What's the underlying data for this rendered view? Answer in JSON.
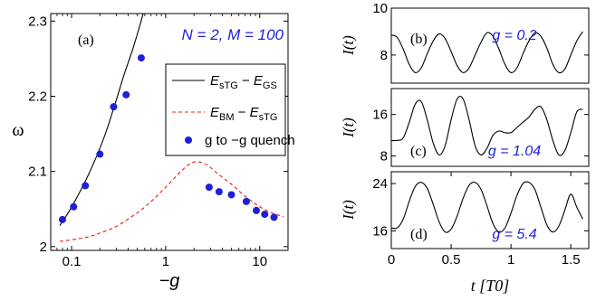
{
  "chart_data": [
    {
      "id": "a",
      "type": "scatter",
      "panel_label": "(a)",
      "annotation": "N = 2, M = 100",
      "xlabel": "−g",
      "ylabel": "ω",
      "xscale": "log",
      "xlim": [
        0.06,
        20
      ],
      "ylim": [
        1.995,
        2.31
      ],
      "xticks": [
        0.1,
        1,
        10
      ],
      "xtick_labels": [
        "0.1",
        "1",
        "10"
      ],
      "yticks": [
        2.0,
        2.1,
        2.2,
        2.3
      ],
      "ytick_labels": [
        "2",
        "2.1",
        "2.2",
        "2.3"
      ],
      "legend_position": "center-right",
      "legend": {
        "sTG_GS": {
          "E1": "E",
          "s1": "sTG",
          "E2": "E",
          "s2": "GS"
        },
        "BM_sTG": {
          "E1": "E",
          "s1": "BM",
          "E2": "E",
          "s2": "sTG"
        },
        "quench": "g to −g quench"
      },
      "series": [
        {
          "name": "E_sTG − E_GS",
          "style": "solid",
          "color": "#000000",
          "x": [
            0.075,
            0.09,
            0.11,
            0.14,
            0.18,
            0.23,
            0.29,
            0.36,
            0.44,
            0.52,
            0.6
          ],
          "y": [
            2.028,
            2.043,
            2.062,
            2.087,
            2.117,
            2.151,
            2.19,
            2.228,
            2.26,
            2.29,
            2.318
          ]
        },
        {
          "name": "E_BM − E_sTG",
          "style": "dashed",
          "color": "#e8201c",
          "x": [
            0.075,
            0.1,
            0.15,
            0.2,
            0.3,
            0.5,
            0.7,
            1.0,
            1.4,
            1.8,
            2.2,
            2.8,
            3.5,
            5,
            7,
            10,
            14,
            18
          ],
          "y": [
            2.007,
            2.009,
            2.013,
            2.018,
            2.027,
            2.045,
            2.06,
            2.079,
            2.098,
            2.11,
            2.113,
            2.108,
            2.098,
            2.083,
            2.067,
            2.053,
            2.044,
            2.04
          ]
        },
        {
          "name": "g to −g quench",
          "style": "markers",
          "color": "#1f1fd6",
          "x": [
            0.08,
            0.105,
            0.14,
            0.2,
            0.28,
            0.38,
            0.55,
            2.9,
            3.7,
            5.0,
            7.2,
            9.2,
            11.3,
            14.2
          ],
          "y": [
            2.036,
            2.053,
            2.081,
            2.123,
            2.186,
            2.202,
            2.251,
            2.079,
            2.073,
            2.069,
            2.06,
            2.048,
            2.043,
            2.039
          ]
        }
      ]
    },
    {
      "id": "b",
      "type": "line",
      "panel_label": "(b)",
      "annotation": "g = 0.2",
      "ylabel": "I(t)",
      "xlim": [
        0,
        1.65
      ],
      "ylim": [
        6.8,
        10
      ],
      "yticks": [
        8,
        10
      ],
      "ytick_labels": [
        "8",
        "10"
      ],
      "series": [
        {
          "name": "",
          "color": "#000000",
          "x": [
            0,
            0.05,
            0.1,
            0.15,
            0.2,
            0.25,
            0.3,
            0.35,
            0.4,
            0.45,
            0.5,
            0.55,
            0.6,
            0.65,
            0.7,
            0.75,
            0.8,
            0.85,
            0.9,
            0.95,
            1.0,
            1.05,
            1.1,
            1.15,
            1.2,
            1.25,
            1.3,
            1.35,
            1.4,
            1.45,
            1.5,
            1.55,
            1.6
          ],
          "y": [
            8.85,
            8.75,
            8.25,
            7.6,
            7.25,
            7.45,
            8.05,
            8.6,
            8.9,
            8.7,
            8.15,
            7.55,
            7.25,
            7.45,
            8.0,
            8.55,
            8.95,
            8.8,
            8.25,
            7.6,
            7.25,
            7.45,
            8.05,
            8.6,
            8.95,
            8.8,
            8.3,
            7.6,
            7.25,
            7.4,
            8.0,
            8.6,
            9.0
          ]
        }
      ]
    },
    {
      "id": "c",
      "type": "line",
      "panel_label": "(c)",
      "annotation": "g = 1.04",
      "ylabel": "I(t)",
      "xlim": [
        0,
        1.65
      ],
      "ylim": [
        6,
        21
      ],
      "yticks": [
        8,
        16
      ],
      "ytick_labels": [
        "8",
        "16"
      ],
      "series": [
        {
          "name": "",
          "color": "#000000",
          "x": [
            0,
            0.05,
            0.1,
            0.15,
            0.2,
            0.25,
            0.3,
            0.35,
            0.4,
            0.45,
            0.5,
            0.55,
            0.6,
            0.65,
            0.7,
            0.75,
            0.8,
            0.85,
            0.9,
            0.95,
            1.0,
            1.05,
            1.1,
            1.15,
            1.2,
            1.25,
            1.3,
            1.35,
            1.4,
            1.45,
            1.5,
            1.55,
            1.6
          ],
          "y": [
            11,
            11,
            11.5,
            14.5,
            18,
            18.5,
            15,
            10.5,
            8.2,
            10,
            15,
            19,
            19,
            15,
            10,
            8.2,
            9.5,
            12,
            12.8,
            12.5,
            12.5,
            13.5,
            14.5,
            15.5,
            17,
            17.5,
            15,
            11,
            8.2,
            9,
            12.5,
            16.5,
            17
          ]
        }
      ]
    },
    {
      "id": "d",
      "type": "line",
      "panel_label": "(d)",
      "annotation": "g = 5.4",
      "ylabel": "I(t)",
      "xlabel": "t [T0]",
      "xlim": [
        0,
        1.65
      ],
      "ylim": [
        13,
        26
      ],
      "xticks": [
        0,
        0.5,
        1,
        1.5
      ],
      "xtick_labels": [
        "0",
        "0.5",
        "1",
        "1.5"
      ],
      "yticks": [
        16,
        24
      ],
      "ytick_labels": [
        "16",
        "24"
      ],
      "series": [
        {
          "name": "",
          "color": "#000000",
          "x": [
            0,
            0.05,
            0.1,
            0.15,
            0.2,
            0.25,
            0.3,
            0.35,
            0.4,
            0.45,
            0.5,
            0.55,
            0.6,
            0.65,
            0.7,
            0.75,
            0.8,
            0.85,
            0.9,
            0.95,
            1.0,
            1.05,
            1.1,
            1.15,
            1.2,
            1.25,
            1.3,
            1.35,
            1.4,
            1.45,
            1.5,
            1.55,
            1.6
          ],
          "y": [
            16.5,
            16.5,
            18,
            21,
            23.5,
            24.2,
            23.2,
            20.5,
            17.5,
            15.8,
            16.3,
            18.5,
            21.5,
            23.7,
            24.2,
            23,
            20.2,
            17.2,
            15.8,
            16.5,
            19,
            22,
            24,
            24.2,
            23,
            20,
            17,
            15.8,
            16.8,
            19.5,
            22.2,
            20,
            18
          ]
        }
      ]
    }
  ]
}
